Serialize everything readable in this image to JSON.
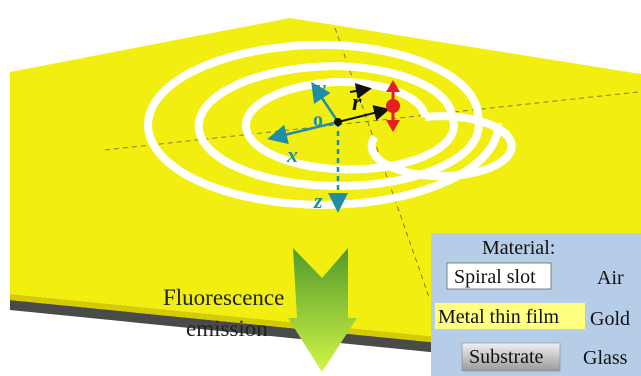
{
  "axes": {
    "x": "x",
    "y": "y",
    "z": "z",
    "origin": "o",
    "radius": "r"
  },
  "emission": {
    "line1": "Fluorescence",
    "line2": "emission"
  },
  "legend": {
    "title": "Material:",
    "rows": [
      {
        "swatch": "Spiral slot",
        "material": "Air",
        "color": "#ffffff"
      },
      {
        "swatch": "Metal thin film",
        "material": "Gold",
        "color": "#ffff80"
      },
      {
        "swatch": "Substrate",
        "material": "Glass",
        "color": "#d0d0d0"
      }
    ]
  },
  "colors": {
    "gold": "#f2ef10",
    "gold_side": "#d6cf00",
    "substrate_side": "#444444",
    "axis": "#1f8fa8",
    "dipole": "#e51f1f",
    "arrow_top": "#4a8f25",
    "arrow_bottom": "#c8f03a",
    "legend_bg": "#b5cde6"
  }
}
